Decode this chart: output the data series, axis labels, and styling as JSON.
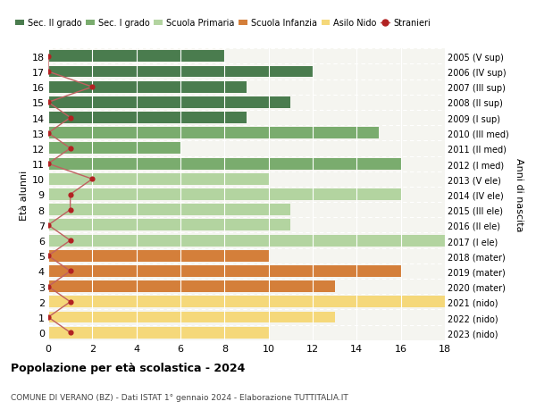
{
  "ages": [
    18,
    17,
    16,
    15,
    14,
    13,
    12,
    11,
    10,
    9,
    8,
    7,
    6,
    5,
    4,
    3,
    2,
    1,
    0
  ],
  "bar_values": [
    8,
    12,
    9,
    11,
    9,
    15,
    6,
    16,
    10,
    16,
    11,
    11,
    18,
    10,
    16,
    13,
    18,
    13,
    10
  ],
  "bar_colors": [
    "#4a7c4e",
    "#4a7c4e",
    "#4a7c4e",
    "#4a7c4e",
    "#4a7c4e",
    "#7aac6e",
    "#7aac6e",
    "#7aac6e",
    "#b3d4a0",
    "#b3d4a0",
    "#b3d4a0",
    "#b3d4a0",
    "#b3d4a0",
    "#d47f3a",
    "#d47f3a",
    "#d47f3a",
    "#f5d87a",
    "#f5d87a",
    "#f5d87a"
  ],
  "stranieri": [
    0,
    0,
    2,
    0,
    1,
    0,
    1,
    0,
    2,
    1,
    1,
    0,
    1,
    0,
    1,
    0,
    1,
    0,
    1
  ],
  "right_labels": [
    "2005 (V sup)",
    "2006 (IV sup)",
    "2007 (III sup)",
    "2008 (II sup)",
    "2009 (I sup)",
    "2010 (III med)",
    "2011 (II med)",
    "2012 (I med)",
    "2013 (V ele)",
    "2014 (IV ele)",
    "2015 (III ele)",
    "2016 (II ele)",
    "2017 (I ele)",
    "2018 (mater)",
    "2019 (mater)",
    "2020 (mater)",
    "2021 (nido)",
    "2022 (nido)",
    "2023 (nido)"
  ],
  "legend_labels": [
    "Sec. II grado",
    "Sec. I grado",
    "Scuola Primaria",
    "Scuola Infanzia",
    "Asilo Nido",
    "Stranieri"
  ],
  "legend_colors": [
    "#4a7c4e",
    "#7aac6e",
    "#b3d4a0",
    "#d47f3a",
    "#f5d87a",
    "#b22222"
  ],
  "ylabel_left": "Età alunni",
  "ylabel_right": "Anni di nascita",
  "title": "Popolazione per età scolastica - 2024",
  "subtitle": "COMUNE DI VERANO (BZ) - Dati ISTAT 1° gennaio 2024 - Elaborazione TUTTITALIA.IT",
  "xlim_max": 18,
  "bg_color": "#ffffff",
  "plot_bg_color": "#f5f5f0",
  "stranieri_color": "#b22222",
  "stranieri_line_color": "#c06060",
  "grid_color": "#ffffff",
  "bar_height": 0.75
}
